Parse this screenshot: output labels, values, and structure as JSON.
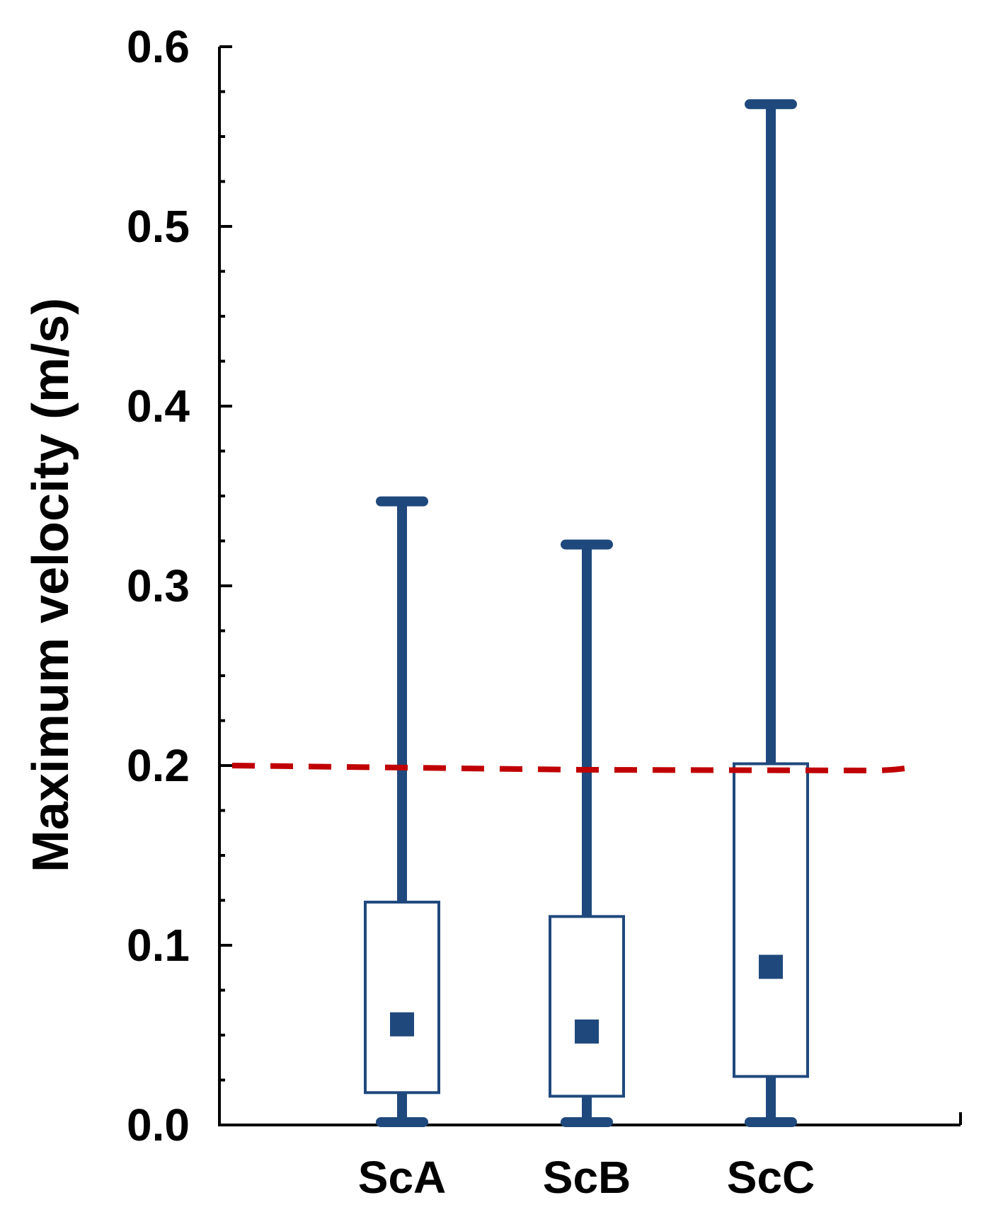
{
  "chart_data": {
    "type": "box",
    "title": "",
    "xlabel": "",
    "ylabel": "Maximum velocity (m/s)",
    "ylim": [
      0.0,
      0.6
    ],
    "yticks": [
      "0.0",
      "0.1",
      "0.2",
      "0.3",
      "0.4",
      "0.5",
      "0.6"
    ],
    "categories": [
      "ScA",
      "ScB",
      "ScC"
    ],
    "series": [
      {
        "category": "ScA",
        "min": 0.0,
        "q1": 0.018,
        "mean": 0.056,
        "q3": 0.124,
        "max": 0.347
      },
      {
        "category": "ScB",
        "min": 0.0,
        "q1": 0.016,
        "mean": 0.052,
        "q3": 0.116,
        "max": 0.323
      },
      {
        "category": "ScC",
        "min": 0.0,
        "q1": 0.027,
        "mean": 0.088,
        "q3": 0.201,
        "max": 0.568
      }
    ],
    "reference_line": {
      "y": 0.2,
      "style": "dashed"
    },
    "grid": false,
    "legend": "none",
    "colors": {
      "box": "#1f497d",
      "reference": "#c00000",
      "axis": "#000000"
    }
  }
}
